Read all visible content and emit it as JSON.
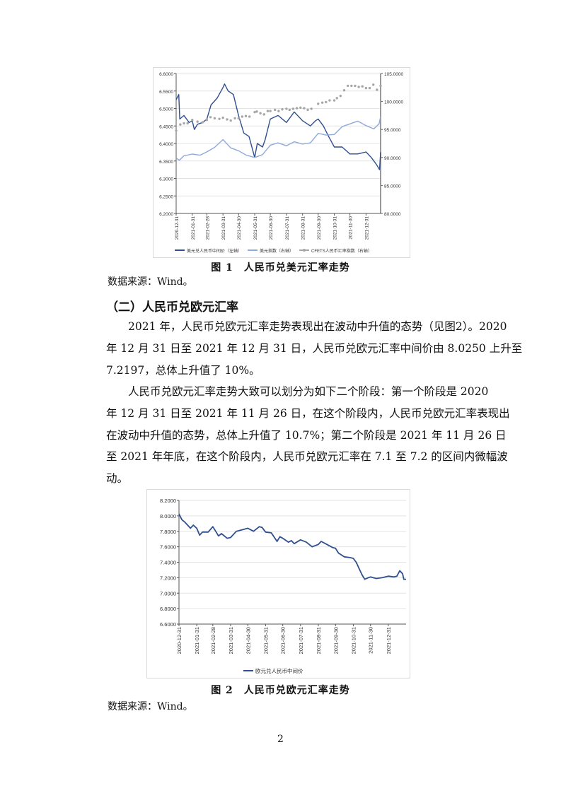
{
  "figure1": {
    "caption": "图 1　人民币兑美元汇率走势",
    "source": "数据来源：Wind。",
    "chart_data": {
      "type": "line",
      "title": "",
      "x_ticks": [
        "2020-12-31",
        "2021-01-31",
        "2021-02-28",
        "2021-03-31",
        "2021-04-30",
        "2021-05-31",
        "2021-06-30",
        "2021-07-31",
        "2021-08-31",
        "2021-09-30",
        "2021-10-31",
        "2021-11-30",
        "2021-12-31"
      ],
      "xlim": [
        "2020-12-31",
        "2022-01-28"
      ],
      "left_axis": {
        "ylim": [
          6.2,
          6.6
        ],
        "ticks": [
          "6.2000",
          "6.2500",
          "6.3000",
          "6.3500",
          "6.4000",
          "6.4500",
          "6.5000",
          "6.5500",
          "6.6000"
        ]
      },
      "right_axis": {
        "ylim": [
          80,
          105
        ],
        "ticks": [
          "80.0000",
          "85.0000",
          "90.0000",
          "95.0000",
          "100.0000",
          "105.0000"
        ]
      },
      "grid": true,
      "legend_position": "bottom",
      "series": [
        {
          "name": "美元兑人民币中间价（左轴）",
          "axis": "left",
          "color": "#2f4f8f",
          "style": "line",
          "x": [
            "2020-12-31",
            "2021-01-05",
            "2021-01-07",
            "2021-01-15",
            "2021-01-25",
            "2021-01-31",
            "2021-02-04",
            "2021-02-10",
            "2021-02-20",
            "2021-02-28",
            "2021-03-08",
            "2021-03-20",
            "2021-03-31",
            "2021-04-03",
            "2021-04-10",
            "2021-04-20",
            "2021-04-30",
            "2021-05-10",
            "2021-05-20",
            "2021-05-31",
            "2021-06-05",
            "2021-06-15",
            "2021-06-20",
            "2021-06-30",
            "2021-07-15",
            "2021-07-31",
            "2021-08-15",
            "2021-08-31",
            "2021-09-15",
            "2021-09-25",
            "2021-09-30",
            "2021-10-10",
            "2021-10-20",
            "2021-10-31",
            "2021-11-15",
            "2021-11-30",
            "2021-12-15",
            "2021-12-31",
            "2022-01-10",
            "2022-01-20",
            "2022-01-26",
            "2022-01-28"
          ],
          "values": [
            6.5249,
            6.54,
            6.47,
            6.48,
            6.46,
            6.465,
            6.44,
            6.455,
            6.46,
            6.47,
            6.51,
            6.53,
            6.56,
            6.57,
            6.55,
            6.54,
            6.48,
            6.43,
            6.42,
            6.36,
            6.4,
            6.39,
            6.41,
            6.47,
            6.48,
            6.46,
            6.49,
            6.465,
            6.45,
            6.465,
            6.47,
            6.45,
            6.42,
            6.39,
            6.39,
            6.37,
            6.37,
            6.3757,
            6.36,
            6.34,
            6.325,
            6.375
          ]
        },
        {
          "name": "美元指数（右轴）",
          "axis": "right",
          "color": "#8fa9d8",
          "style": "line",
          "x": [
            "2020-12-31",
            "2021-01-06",
            "2021-01-15",
            "2021-01-31",
            "2021-02-15",
            "2021-02-28",
            "2021-03-15",
            "2021-03-31",
            "2021-04-15",
            "2021-04-30",
            "2021-05-15",
            "2021-05-31",
            "2021-06-15",
            "2021-06-30",
            "2021-07-15",
            "2021-07-31",
            "2021-08-15",
            "2021-08-31",
            "2021-09-15",
            "2021-09-30",
            "2021-10-15",
            "2021-10-31",
            "2021-11-15",
            "2021-11-30",
            "2021-12-15",
            "2021-12-31",
            "2022-01-15",
            "2022-01-25",
            "2022-01-28"
          ],
          "values": [
            89.9,
            89.5,
            90.3,
            90.6,
            90.4,
            91.0,
            91.8,
            93.2,
            91.7,
            91.2,
            90.4,
            90.0,
            90.5,
            92.2,
            92.6,
            92.1,
            92.8,
            92.4,
            92.6,
            94.3,
            94.0,
            94.1,
            95.5,
            96.0,
            96.5,
            95.7,
            95.1,
            96.0,
            97.3
          ]
        },
        {
          "name": "CFETS人民币汇率指数（右轴）",
          "axis": "right",
          "color": "#a6a6a6",
          "style": "dots",
          "x": [
            "2020-12-31",
            "2021-01-08",
            "2021-01-15",
            "2021-01-22",
            "2021-01-31",
            "2021-02-10",
            "2021-02-20",
            "2021-02-28",
            "2021-03-07",
            "2021-03-15",
            "2021-03-24",
            "2021-03-31",
            "2021-04-08",
            "2021-04-15",
            "2021-04-23",
            "2021-04-30",
            "2021-05-07",
            "2021-05-14",
            "2021-05-21",
            "2021-05-31",
            "2021-06-04",
            "2021-06-11",
            "2021-06-18",
            "2021-06-25",
            "2021-06-30",
            "2021-07-09",
            "2021-07-16",
            "2021-07-23",
            "2021-07-31",
            "2021-08-06",
            "2021-08-13",
            "2021-08-20",
            "2021-08-27",
            "2021-09-03",
            "2021-09-10",
            "2021-09-17",
            "2021-09-30",
            "2021-10-08",
            "2021-10-15",
            "2021-10-22",
            "2021-10-31",
            "2021-11-05",
            "2021-11-12",
            "2021-11-19",
            "2021-11-26",
            "2021-12-03",
            "2021-12-10",
            "2021-12-17",
            "2021-12-24",
            "2021-12-31",
            "2022-01-07",
            "2022-01-14",
            "2022-01-21",
            "2022-01-28"
          ],
          "values": [
            94.8,
            95.9,
            96.1,
            96.1,
            96.7,
            96.4,
            96.3,
            96.7,
            97.2,
            97.0,
            96.9,
            97.1,
            96.8,
            96.6,
            97.0,
            97.0,
            97.3,
            97.4,
            97.3,
            98.1,
            98.2,
            97.9,
            97.7,
            98.3,
            98.3,
            98.5,
            98.3,
            98.6,
            98.7,
            98.5,
            98.7,
            98.8,
            98.9,
            98.8,
            98.5,
            98.7,
            99.6,
            99.8,
            99.9,
            100.2,
            100.2,
            100.6,
            101.0,
            102.0,
            102.8,
            102.8,
            102.8,
            102.6,
            102.7,
            102.4,
            102.4,
            103.0,
            102.1,
            102.8
          ]
        }
      ]
    }
  },
  "section": {
    "heading": "（二）人民币兑欧元汇率",
    "paragraphs": [
      [
        "2021 年，人民币兑欧元汇率走势表现出在波动中升值的态势（见图2）。2020",
        "年 12 月 31 日至 2021 年 12 月 31 日，人民币兑欧元汇率中间价由 8.0250 上升至",
        "7.2197，总体上升值了 10%。"
      ],
      [
        "人民币兑欧元汇率走势大致可以划分为如下二个阶段：第一个阶段是 2020",
        "年 12 月 31 日至 2021 年 11 月 26 日，在这个阶段内，人民币兑欧元汇率表现出",
        "在波动中升值的态势，总体上升值了 10.7%；第二个阶段是 2021 年 11 月 26 日",
        "至 2021 年年底，在这个阶段内，人民币兑欧元汇率在 7.1 至 7.2 的区间内微幅波",
        "动。"
      ]
    ]
  },
  "figure2": {
    "caption": "图 2　人民币兑欧元汇率走势",
    "source": "数据来源：Wind。",
    "chart_data": {
      "type": "line",
      "title": "",
      "x_ticks": [
        "2020-12-31",
        "2021-01-31",
        "2021-02-28",
        "2021-03-31",
        "2021-04-30",
        "2021-05-31",
        "2021-06-30",
        "2021-07-31",
        "2021-08-31",
        "2021-09-30",
        "2021-10-31",
        "2021-11-30",
        "2021-12-31"
      ],
      "xlim": [
        "2020-12-31",
        "2022-01-31"
      ],
      "ylim": [
        6.6,
        8.2
      ],
      "y_ticks": [
        "6.6000",
        "6.8000",
        "7.0000",
        "7.2000",
        "7.4000",
        "7.6000",
        "7.8000",
        "8.0000",
        "8.2000"
      ],
      "grid": true,
      "legend_position": "bottom",
      "series": [
        {
          "name": "欧元兑人民币中间价",
          "color": "#2f4f8f",
          "x": [
            "2020-12-31",
            "2021-01-05",
            "2021-01-10",
            "2021-01-15",
            "2021-01-20",
            "2021-01-25",
            "2021-01-31",
            "2021-02-05",
            "2021-02-10",
            "2021-02-20",
            "2021-02-28",
            "2021-03-05",
            "2021-03-10",
            "2021-03-15",
            "2021-03-25",
            "2021-03-31",
            "2021-04-10",
            "2021-04-20",
            "2021-04-30",
            "2021-05-10",
            "2021-05-20",
            "2021-05-25",
            "2021-05-31",
            "2021-06-10",
            "2021-06-20",
            "2021-06-25",
            "2021-06-30",
            "2021-07-10",
            "2021-07-15",
            "2021-07-20",
            "2021-07-31",
            "2021-08-10",
            "2021-08-20",
            "2021-08-31",
            "2021-09-05",
            "2021-09-15",
            "2021-09-25",
            "2021-09-30",
            "2021-10-05",
            "2021-10-15",
            "2021-10-25",
            "2021-10-31",
            "2021-11-05",
            "2021-11-10",
            "2021-11-15",
            "2021-11-20",
            "2021-11-26",
            "2021-11-30",
            "2021-12-10",
            "2021-12-20",
            "2021-12-31",
            "2022-01-10",
            "2022-01-15",
            "2022-01-20",
            "2022-01-25",
            "2022-01-27",
            "2022-01-31"
          ],
          "values": [
            8.025,
            7.95,
            7.92,
            7.88,
            7.84,
            7.88,
            7.84,
            7.75,
            7.79,
            7.79,
            7.86,
            7.8,
            7.74,
            7.77,
            7.71,
            7.72,
            7.8,
            7.82,
            7.84,
            7.8,
            7.86,
            7.85,
            7.79,
            7.78,
            7.67,
            7.73,
            7.71,
            7.66,
            7.68,
            7.64,
            7.69,
            7.66,
            7.6,
            7.63,
            7.67,
            7.63,
            7.59,
            7.58,
            7.52,
            7.47,
            7.46,
            7.45,
            7.4,
            7.32,
            7.24,
            7.18,
            7.2,
            7.21,
            7.19,
            7.2,
            7.2197,
            7.21,
            7.22,
            7.29,
            7.25,
            7.18,
            7.18
          ]
        }
      ]
    }
  },
  "page_number": "2"
}
